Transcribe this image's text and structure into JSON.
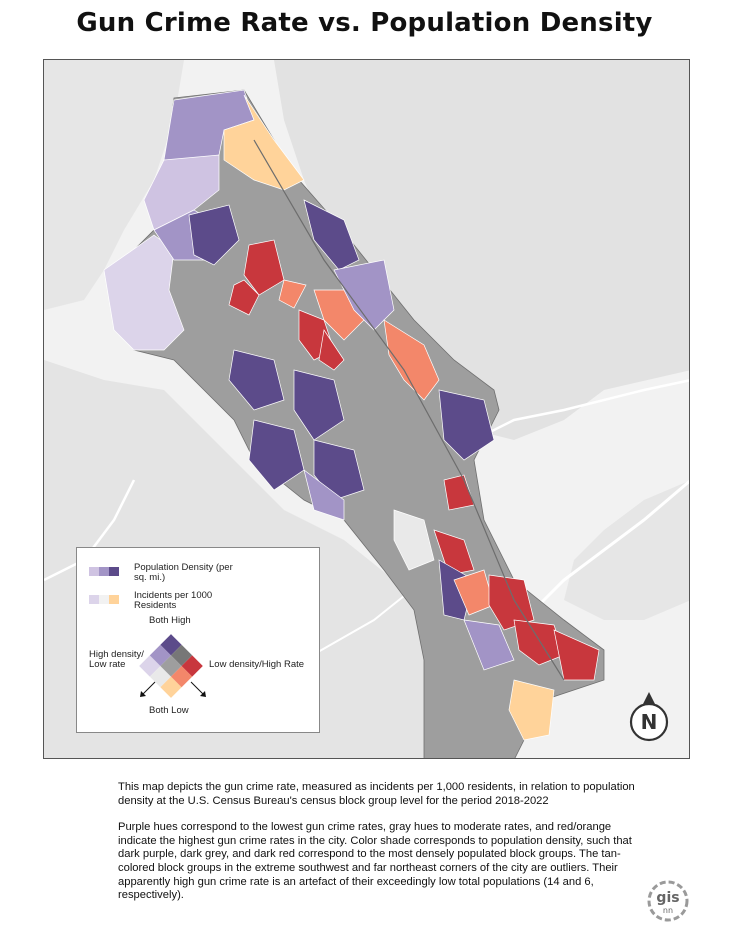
{
  "title": "Gun Crime Rate vs. Population Density",
  "legend": {
    "density_label": "Population Density (per sq. mi.)",
    "rate_label": "Incidents per 1000 Residents",
    "both_high": "Both High",
    "both_low": "Both Low",
    "high_density_low_rate": "High density/ Low rate",
    "low_density_high_rate": "Low density/High Rate",
    "density_ramp": [
      "#cfc3e2",
      "#a294c6",
      "#5c4b8a"
    ],
    "rate_ramp": [
      "#dcd4ea",
      "#f2f2f2",
      "#ffd39a"
    ],
    "bivariate": [
      "#dcd4ea",
      "#e9e9e9",
      "#ffd39a",
      "#a294c6",
      "#9e9e9e",
      "#f3876a",
      "#5c4b8a",
      "#777777",
      "#c8373d"
    ]
  },
  "colors": {
    "land": "#e3e3e3",
    "water": "#f2f2f2",
    "both_high": "#c8373d",
    "high_density_low_rate": "#5c4b8a",
    "moderate": "#9e9e9e",
    "tan": "#ffd39a",
    "light_purple": "#cfc3e2",
    "mid_purple": "#a294c6",
    "salmon": "#f3876a"
  },
  "compass": {
    "letter": "N",
    "icon": "north-arrow-icon"
  },
  "description": [
    "This map depicts the gun crime rate, measured as incidents per 1,000 residents, in relation to population density at the U.S. Census Bureau's census block group level for the period 2018-2022",
    "Purple hues correspond to the lowest gun crime rates, gray hues to moderate rates, and red/orange indicate the highest gun crime rates in the city. Color shade corresponds to population density, such that dark purple, dark grey, and dark red correspond to the most densely populated block groups. The tan-colored block groups in the extreme southwest and far northeast corners of the city are outliers. Their apparently high gun crime rate is an artefact of their exceedingly low total populations (14 and 6, respectively)."
  ],
  "logo": {
    "text": "gis",
    "subtext": "nn"
  }
}
